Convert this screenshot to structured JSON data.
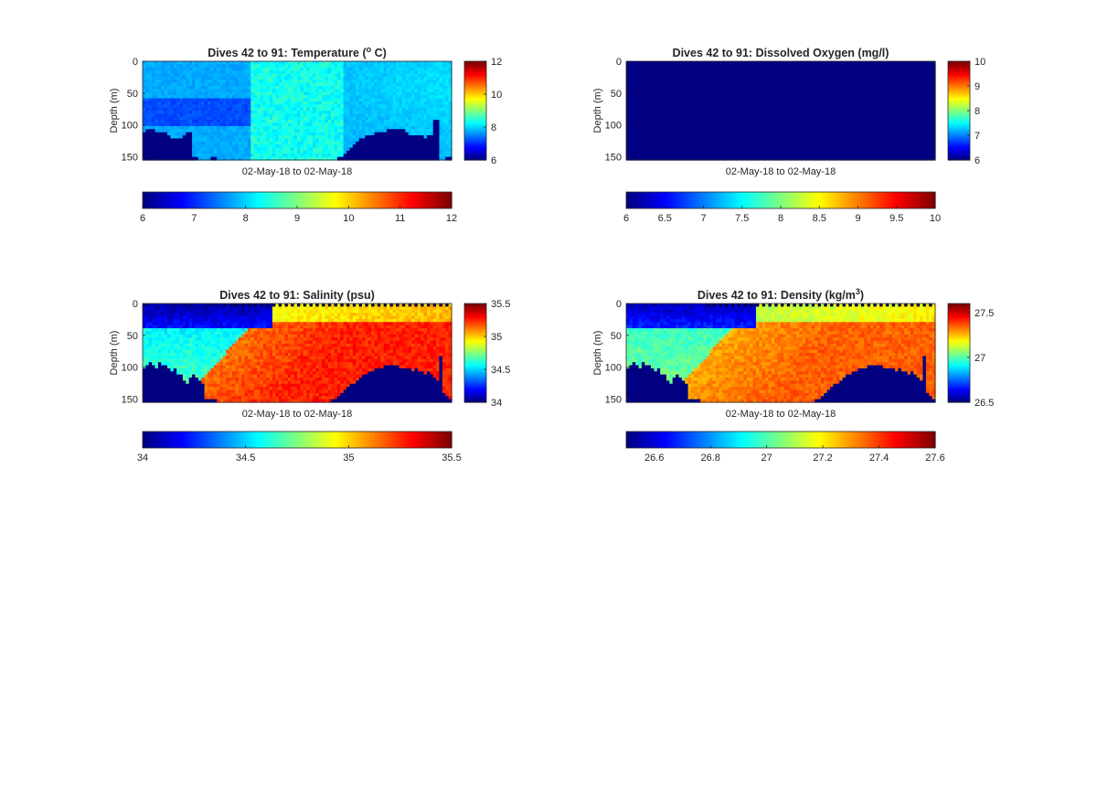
{
  "figure": {
    "background": "#ffffff"
  },
  "colormap": "jet",
  "chart_data": [
    {
      "type": "heatmap",
      "title": "Dives 42 to 91: Temperature (",
      "title_sup": "o",
      "title_end": " C)",
      "xlabel": "02-May-18 to 02-May-18",
      "ylabel": "Depth (m)",
      "yticks": [
        0,
        50,
        100,
        150
      ],
      "ylim": [
        0,
        155
      ],
      "clim": [
        6,
        12
      ],
      "colorbar_right_ticks": [
        "6",
        "8",
        "10",
        "12"
      ],
      "colorbar_bottom_ticks": [
        "6",
        "7",
        "8",
        "9",
        "10",
        "11",
        "12"
      ],
      "grid": false,
      "field": "temperature",
      "x_columns": 100,
      "depth_bins": 32,
      "background_value": 6.0,
      "mask_depth": [
        112,
        108,
        108,
        108,
        110,
        112,
        112,
        112,
        114,
        120,
        120,
        122,
        122,
        118,
        112,
        112,
        148,
        148,
        155,
        155,
        155,
        155,
        148,
        148,
        155,
        155,
        155,
        155,
        155,
        155,
        155,
        155,
        155,
        155,
        155,
        155,
        155,
        155,
        155,
        155,
        155,
        155,
        155,
        155,
        155,
        155,
        155,
        155,
        155,
        155,
        155,
        155,
        155,
        155,
        155,
        155,
        155,
        155,
        155,
        155,
        155,
        155,
        155,
        150,
        148,
        145,
        140,
        135,
        130,
        125,
        122,
        120,
        118,
        116,
        114,
        112,
        110,
        110,
        110,
        108,
        106,
        106,
        106,
        106,
        108,
        112,
        114,
        116,
        114,
        116,
        118,
        120,
        116,
        118,
        90,
        90,
        155,
        155,
        152,
        152
      ]
    },
    {
      "type": "heatmap",
      "title": "Dives 42 to 91: Dissolved Oxygen (mg/l)",
      "xlabel": "02-May-18 to 02-May-18",
      "ylabel": "Depth (m)",
      "yticks": [
        0,
        50,
        100,
        150
      ],
      "ylim": [
        0,
        155
      ],
      "clim": [
        6,
        10
      ],
      "colorbar_right_ticks": [
        "6",
        "7",
        "8",
        "9",
        "10"
      ],
      "colorbar_bottom_ticks": [
        "6",
        "6.5",
        "7",
        "7.5",
        "8",
        "8.5",
        "9",
        "9.5",
        "10"
      ],
      "grid": false,
      "field": "oxygen",
      "x_columns": 100,
      "depth_bins": 32,
      "background_value": 6.0
    },
    {
      "type": "heatmap",
      "title": "Dives 42 to 91: Salinity (psu)",
      "xlabel": "02-May-18 to 02-May-18",
      "ylabel": "Depth (m)",
      "yticks": [
        0,
        50,
        100,
        150
      ],
      "ylim": [
        0,
        155
      ],
      "clim": [
        34,
        35.5
      ],
      "colorbar_right_ticks": [
        "34",
        "34.5",
        "35",
        "35.5"
      ],
      "colorbar_bottom_ticks": [
        "34",
        "34.5",
        "35",
        "35.5"
      ],
      "grid": false,
      "field": "salinity",
      "x_columns": 100,
      "depth_bins": 32,
      "background_value": 34.0,
      "mask_depth": [
        100,
        96,
        92,
        96,
        100,
        92,
        96,
        96,
        104,
        106,
        100,
        112,
        110,
        120,
        124,
        116,
        112,
        118,
        120,
        124,
        150,
        150,
        150,
        150,
        155,
        155,
        155,
        155,
        155,
        155,
        155,
        155,
        155,
        155,
        155,
        155,
        155,
        155,
        155,
        155,
        155,
        155,
        155,
        155,
        155,
        155,
        155,
        155,
        155,
        155,
        155,
        155,
        155,
        155,
        155,
        155,
        155,
        155,
        155,
        155,
        155,
        150,
        148,
        144,
        140,
        136,
        132,
        128,
        124,
        120,
        116,
        112,
        110,
        108,
        106,
        104,
        102,
        100,
        98,
        98,
        96,
        96,
        98,
        100,
        102,
        102,
        104,
        106,
        104,
        106,
        108,
        110,
        108,
        112,
        118,
        120,
        80,
        140,
        146,
        148
      ]
    },
    {
      "type": "heatmap",
      "title": "Dives 42 to 91: Density (kg/m",
      "title_sup": "3",
      "title_end": ")",
      "xlabel": "02-May-18 to 02-May-18",
      "ylabel": "Depth (m)",
      "yticks": [
        0,
        50,
        100,
        150
      ],
      "ylim": [
        0,
        155
      ],
      "clim": [
        26.5,
        27.6
      ],
      "colorbar_right_ticks": [
        "26.5",
        "27",
        "27.5"
      ],
      "colorbar_bottom_ticks": [
        "26.6",
        "26.8",
        "27",
        "27.2",
        "27.4",
        "27.6"
      ],
      "grid": false,
      "field": "density",
      "x_columns": 100,
      "depth_bins": 32,
      "background_value": 26.5,
      "mask_depth": [
        100,
        96,
        92,
        96,
        100,
        92,
        96,
        96,
        104,
        106,
        100,
        112,
        110,
        120,
        124,
        116,
        112,
        118,
        120,
        124,
        150,
        150,
        150,
        150,
        155,
        155,
        155,
        155,
        155,
        155,
        155,
        155,
        155,
        155,
        155,
        155,
        155,
        155,
        155,
        155,
        155,
        155,
        155,
        155,
        155,
        155,
        155,
        155,
        155,
        155,
        155,
        155,
        155,
        155,
        155,
        155,
        155,
        155,
        155,
        155,
        155,
        150,
        148,
        144,
        140,
        136,
        132,
        128,
        124,
        120,
        116,
        112,
        110,
        108,
        106,
        104,
        102,
        100,
        98,
        98,
        96,
        96,
        98,
        100,
        102,
        102,
        104,
        106,
        104,
        106,
        108,
        110,
        108,
        112,
        118,
        120,
        80,
        140,
        146,
        148
      ]
    }
  ]
}
